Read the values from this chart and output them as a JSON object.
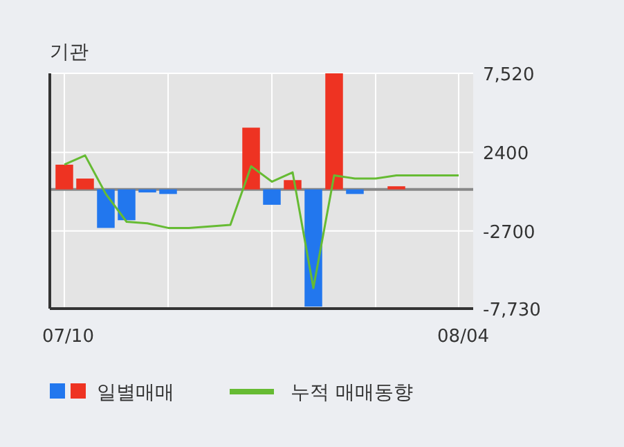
{
  "chart_data": {
    "type": "bar",
    "title": "기관",
    "categories": [
      "07/10",
      null,
      null,
      null,
      null,
      null,
      null,
      null,
      null,
      null,
      null,
      null,
      null,
      null,
      null,
      null,
      null,
      null,
      null,
      "08/04"
    ],
    "series": [
      {
        "name": "일별매매",
        "values": [
          1600,
          700,
          -2500,
          -2000,
          -200,
          -300,
          null,
          null,
          null,
          4000,
          -1000,
          600,
          -7600,
          7520,
          -300,
          null,
          200,
          null,
          null,
          null
        ],
        "colors": [
          "#ee3322",
          "#ee3322",
          "#2277ee",
          "#2277ee",
          "#2277ee",
          "#2277ee",
          null,
          null,
          null,
          "#ee3322",
          "#2277ee",
          "#ee3322",
          "#2277ee",
          "#ee3322",
          "#2277ee",
          null,
          "#ee3322",
          null,
          null,
          null
        ]
      },
      {
        "name": "누적 매매동향",
        "type": "line",
        "color": "#66bb33",
        "values": [
          1600,
          2200,
          -300,
          -2100,
          -2200,
          -2500,
          -2500,
          -2400,
          -2300,
          1500,
          500,
          1100,
          -6400,
          900,
          700,
          700,
          900,
          900,
          900,
          900
        ]
      }
    ],
    "ylim": [
      -7730,
      7520
    ],
    "yticks": [
      {
        "value": 7520,
        "label": "7,520"
      },
      2400,
      -2700,
      {
        "value": -7730,
        "label": "-7,730"
      }
    ],
    "ref_lines": [
      {
        "axis": "y",
        "value": 0,
        "color": "#888888"
      }
    ],
    "grid": true,
    "legend": "bottom"
  }
}
